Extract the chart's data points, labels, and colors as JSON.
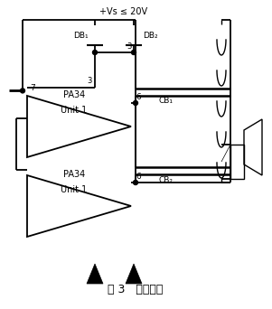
{
  "title": "图 3   自举电路",
  "background_color": "#ffffff",
  "line_color": "#000000",
  "text_color": "#000000",
  "vs_label": "+Vs ≤ 20V",
  "db1_label": "DB₁",
  "db2_label": "DB₂",
  "cb1_label": "CB₁",
  "cb2_label": "CB₂",
  "pa34_label": "PA34",
  "unit_label": "Unit 1",
  "pin7": "7",
  "pin3a": "3",
  "pin3b": "3",
  "pin6a": "6",
  "pin6b": "6"
}
